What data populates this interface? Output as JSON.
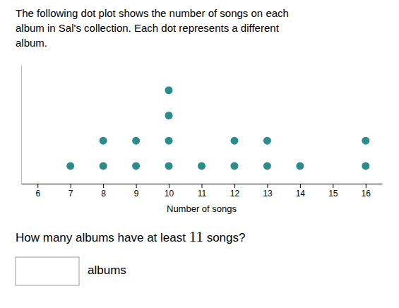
{
  "chart_data": {
    "type": "dot",
    "title": "The following dot plot shows the number of songs on each\nalbum in Sal's collection. Each dot represents a different\nalbum.",
    "x": [
      7,
      8,
      9,
      10,
      11,
      12,
      13,
      14,
      16
    ],
    "values": [
      1,
      2,
      2,
      4,
      1,
      2,
      2,
      1,
      2
    ],
    "color": "#2b8c8c",
    "xlabel": "Number of songs",
    "xlim": [
      5.5,
      16.5
    ],
    "xticks": [
      6,
      7,
      8,
      9,
      10,
      11,
      12,
      13,
      14,
      15,
      16
    ],
    "ylim": [
      0.3,
      5
    ],
    "yticks": [],
    "tick_labels": "x",
    "grid": false,
    "annotations": [
      "How many albums have at least 11 songs?",
      "albums"
    ]
  }
}
